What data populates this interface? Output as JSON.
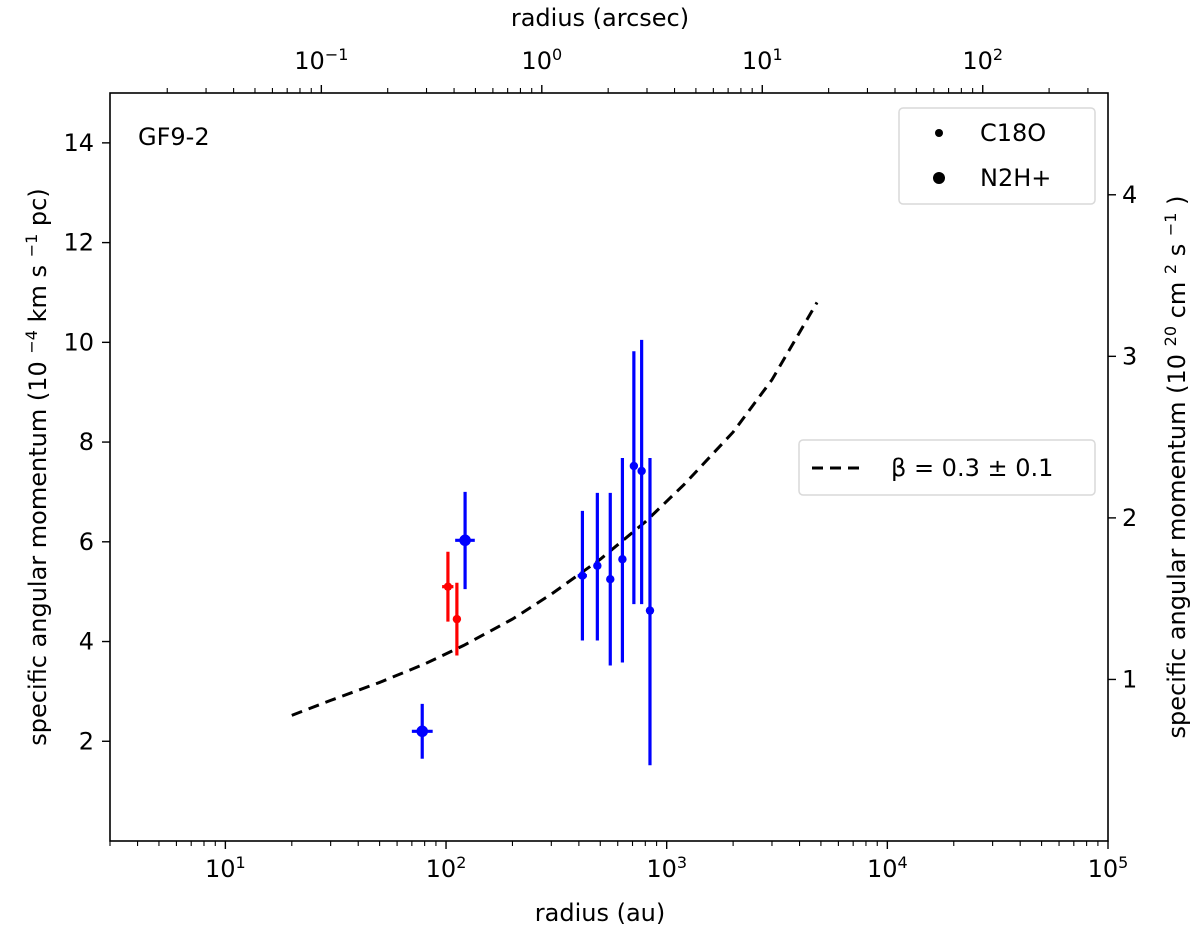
{
  "chart_data": {
    "type": "scatter",
    "title": "",
    "panel_label": "GF9-2",
    "xlabel": "radius (au)",
    "top_xlabel": "radius (arcsec)",
    "ylabel": "specific angular momentum",
    "ylabel_units": "(10",
    "ylabel_exp": "−4",
    "ylabel_tail": " km s",
    "ylabel_tail_exp": "−1",
    "ylabel_end": " pc)",
    "y2label": "specific angular momentum",
    "y2label_units": "(10",
    "y2label_exp": "20",
    "y2label_mid": " cm",
    "y2label_mid_exp": "2",
    "y2label_tail": " s",
    "y2label_tail_exp": "−1",
    "y2label_end": ")",
    "x_scale": "log",
    "xlim": [
      3,
      100000
    ],
    "ylim": [
      0,
      15
    ],
    "top_x_scale": "log",
    "top_xlim": [
      0.011,
      370
    ],
    "y2lim": [
      0,
      4.63
    ],
    "x_ticks": [
      {
        "base": "10",
        "exp": "1",
        "value": 10
      },
      {
        "base": "10",
        "exp": "2",
        "value": 100
      },
      {
        "base": "10",
        "exp": "3",
        "value": 1000
      },
      {
        "base": "10",
        "exp": "4",
        "value": 10000
      },
      {
        "base": "10",
        "exp": "5",
        "value": 100000
      }
    ],
    "top_x_ticks": [
      {
        "base": "10",
        "exp": "−1",
        "value": 0.1
      },
      {
        "base": "10",
        "exp": "0",
        "value": 1
      },
      {
        "base": "10",
        "exp": "1",
        "value": 10
      },
      {
        "base": "10",
        "exp": "2",
        "value": 100
      }
    ],
    "y_ticks": [
      2,
      4,
      6,
      8,
      10,
      12,
      14
    ],
    "y2_ticks": [
      1,
      2,
      3,
      4
    ],
    "legend_markers": {
      "placement": "top-right",
      "entries": [
        {
          "label": "C18O",
          "marker": "small-dot"
        },
        {
          "label": "N2H+",
          "marker": "large-dot"
        }
      ]
    },
    "legend_fit": {
      "placement": "center-right",
      "label_prefix": "β = 0.3 ± 0.1"
    },
    "colors": {
      "blue": "#0000ff",
      "red": "#ff0000",
      "fit": "#000000"
    },
    "fit_line": {
      "style": "dashed",
      "x": [
        20,
        30,
        50,
        80,
        120,
        200,
        300,
        500,
        800,
        1200,
        2000,
        3000,
        4800
      ],
      "y": [
        2.52,
        2.82,
        3.18,
        3.55,
        3.92,
        4.45,
        4.95,
        5.65,
        6.4,
        7.15,
        8.2,
        9.25,
        10.8
      ]
    },
    "series": [
      {
        "color": "blue",
        "marker": "large-dot",
        "points": [
          {
            "x": 78,
            "y": 2.2,
            "xerr": [
              70,
              87
            ],
            "yerr": [
              1.65,
              2.75
            ]
          },
          {
            "x": 122,
            "y": 6.03,
            "xerr": [
              110,
              135
            ],
            "yerr": [
              5.05,
              7.0
            ]
          }
        ]
      },
      {
        "color": "red",
        "marker": "small-dot",
        "points": [
          {
            "x": 102,
            "y": 5.1,
            "xerr": [
              96,
              108
            ],
            "yerr": [
              4.4,
              5.8
            ]
          },
          {
            "x": 112,
            "y": 4.45,
            "xerr": [
              108,
              116
            ],
            "yerr": [
              3.72,
              5.18
            ]
          }
        ]
      },
      {
        "color": "blue",
        "marker": "small-dot",
        "points": [
          {
            "x": 415,
            "y": 5.32,
            "xerr": [
              395,
              435
            ],
            "yerr": [
              4.02,
              6.62
            ]
          },
          {
            "x": 485,
            "y": 5.52,
            "xerr": [
              470,
              500
            ],
            "yerr": [
              4.02,
              6.98
            ]
          },
          {
            "x": 555,
            "y": 5.25,
            "xerr": [
              540,
              570
            ],
            "yerr": [
              3.52,
              6.98
            ]
          },
          {
            "x": 630,
            "y": 5.65,
            "xerr": [
              615,
              645
            ],
            "yerr": [
              3.58,
              7.68
            ]
          },
          {
            "x": 710,
            "y": 7.52,
            "xerr": [
              695,
              725
            ],
            "yerr": [
              4.75,
              9.82
            ]
          },
          {
            "x": 770,
            "y": 7.42,
            "xerr": [
              755,
              785
            ],
            "yerr": [
              4.75,
              10.05
            ]
          },
          {
            "x": 840,
            "y": 4.62,
            "xerr": [
              825,
              855
            ],
            "yerr": [
              1.52,
              7.68
            ]
          }
        ]
      }
    ]
  }
}
